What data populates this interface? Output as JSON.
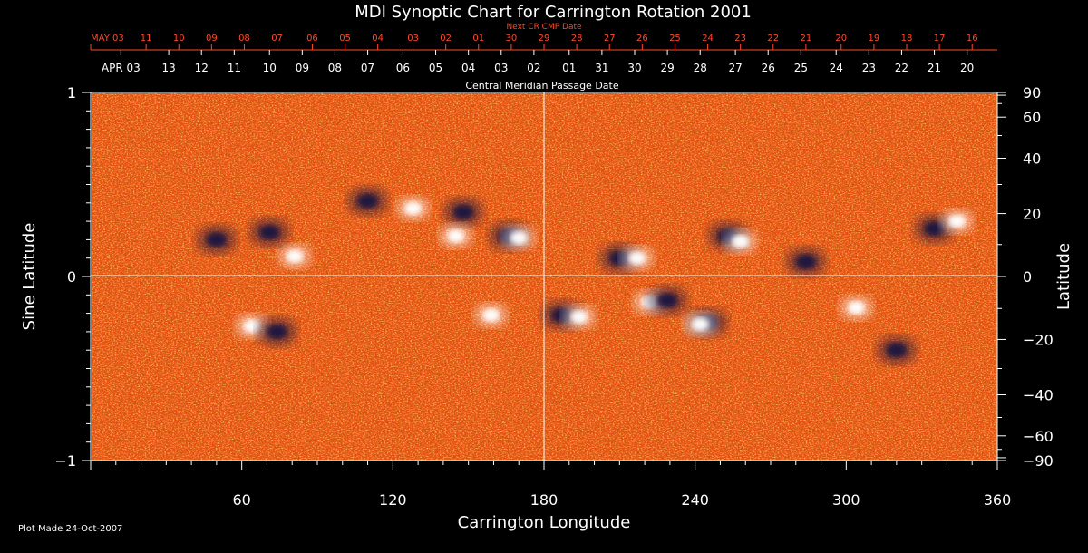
{
  "chart_data": {
    "type": "heatmap",
    "title": "MDI Synoptic Chart for Carrington Rotation 2001",
    "xlabel": "Carrington Longitude",
    "ylabel_left": "Sine Latitude",
    "ylabel_right": "Latitude",
    "top_label_next": "Next CR CMP Date",
    "top_label_cmp": "Central Meridian Passage Date",
    "xlim": [
      0,
      360
    ],
    "ylim": [
      -1,
      1
    ],
    "x_ticks": [
      60,
      120,
      180,
      240,
      300,
      360
    ],
    "y_ticks_left": [
      {
        "value": 1,
        "label": "1"
      },
      {
        "value": 0,
        "label": "0"
      },
      {
        "value": -1,
        "label": "−1"
      }
    ],
    "y_ticks_right": [
      {
        "value": 90,
        "label": "90"
      },
      {
        "value": 60,
        "label": "60"
      },
      {
        "value": 40,
        "label": "40"
      },
      {
        "value": 20,
        "label": "20"
      },
      {
        "value": 0,
        "label": "0"
      },
      {
        "value": -20,
        "label": "−20"
      },
      {
        "value": -40,
        "label": "−40"
      },
      {
        "value": -60,
        "label": "−60"
      },
      {
        "value": -90,
        "label": "−90"
      }
    ],
    "next_cmp_dates": [
      {
        "lon": 0,
        "label": "MAY 03"
      },
      {
        "lon": 22,
        "label": "11"
      },
      {
        "lon": 35,
        "label": "10"
      },
      {
        "lon": 48,
        "label": "09"
      },
      {
        "lon": 61,
        "label": "08"
      },
      {
        "lon": 74,
        "label": "07"
      },
      {
        "lon": 88,
        "label": "06"
      },
      {
        "lon": 101,
        "label": "05"
      },
      {
        "lon": 114,
        "label": "04"
      },
      {
        "lon": 128,
        "label": "03"
      },
      {
        "lon": 141,
        "label": "02"
      },
      {
        "lon": 154,
        "label": "01"
      },
      {
        "lon": 167,
        "label": "30"
      },
      {
        "lon": 180,
        "label": "29"
      },
      {
        "lon": 193,
        "label": "28"
      },
      {
        "lon": 206,
        "label": "27"
      },
      {
        "lon": 219,
        "label": "26"
      },
      {
        "lon": 232,
        "label": "25"
      },
      {
        "lon": 245,
        "label": "24"
      },
      {
        "lon": 258,
        "label": "23"
      },
      {
        "lon": 271,
        "label": "22"
      },
      {
        "lon": 284,
        "label": "21"
      },
      {
        "lon": 298,
        "label": "20"
      },
      {
        "lon": 311,
        "label": "19"
      },
      {
        "lon": 324,
        "label": "18"
      },
      {
        "lon": 337,
        "label": "17"
      },
      {
        "lon": 350,
        "label": "16"
      }
    ],
    "cmp_dates": [
      {
        "lon": 12,
        "label": "APR 03"
      },
      {
        "lon": 31,
        "label": "13"
      },
      {
        "lon": 44,
        "label": "12"
      },
      {
        "lon": 57,
        "label": "11"
      },
      {
        "lon": 71,
        "label": "10"
      },
      {
        "lon": 84,
        "label": "09"
      },
      {
        "lon": 97,
        "label": "08"
      },
      {
        "lon": 110,
        "label": "07"
      },
      {
        "lon": 124,
        "label": "06"
      },
      {
        "lon": 137,
        "label": "05"
      },
      {
        "lon": 150,
        "label": "04"
      },
      {
        "lon": 163,
        "label": "03"
      },
      {
        "lon": 176,
        "label": "02"
      },
      {
        "lon": 190,
        "label": "01"
      },
      {
        "lon": 203,
        "label": "31"
      },
      {
        "lon": 216,
        "label": "30"
      },
      {
        "lon": 229,
        "label": "29"
      },
      {
        "lon": 242,
        "label": "28"
      },
      {
        "lon": 256,
        "label": "27"
      },
      {
        "lon": 269,
        "label": "26"
      },
      {
        "lon": 282,
        "label": "25"
      },
      {
        "lon": 296,
        "label": "24"
      },
      {
        "lon": 309,
        "label": "23"
      },
      {
        "lon": 322,
        "label": "22"
      },
      {
        "lon": 335,
        "label": "21"
      },
      {
        "lon": 348,
        "label": "20"
      }
    ],
    "regions": [
      {
        "lon": 81,
        "sinlat": 0.11,
        "polarity": "positive"
      },
      {
        "lon": 71,
        "sinlat": 0.24,
        "polarity": "negative"
      },
      {
        "lon": 50,
        "sinlat": 0.2,
        "polarity": "negative"
      },
      {
        "lon": 166,
        "sinlat": 0.22,
        "polarity": "negative"
      },
      {
        "lon": 170,
        "sinlat": 0.21,
        "polarity": "positive"
      },
      {
        "lon": 210,
        "sinlat": 0.1,
        "polarity": "negative"
      },
      {
        "lon": 217,
        "sinlat": 0.1,
        "polarity": "positive"
      },
      {
        "lon": 253,
        "sinlat": 0.22,
        "polarity": "negative"
      },
      {
        "lon": 258,
        "sinlat": 0.19,
        "polarity": "positive"
      },
      {
        "lon": 222,
        "sinlat": -0.14,
        "polarity": "positive"
      },
      {
        "lon": 229,
        "sinlat": -0.13,
        "polarity": "negative"
      },
      {
        "lon": 245,
        "sinlat": -0.25,
        "polarity": "negative"
      },
      {
        "lon": 242,
        "sinlat": -0.26,
        "polarity": "positive"
      },
      {
        "lon": 64,
        "sinlat": -0.27,
        "polarity": "positive"
      },
      {
        "lon": 74,
        "sinlat": -0.3,
        "polarity": "negative"
      },
      {
        "lon": 187,
        "sinlat": -0.21,
        "polarity": "negative"
      },
      {
        "lon": 194,
        "sinlat": -0.22,
        "polarity": "positive"
      },
      {
        "lon": 159,
        "sinlat": -0.21,
        "polarity": "positive"
      },
      {
        "lon": 335,
        "sinlat": 0.26,
        "polarity": "negative"
      },
      {
        "lon": 344,
        "sinlat": 0.3,
        "polarity": "positive"
      },
      {
        "lon": 284,
        "sinlat": 0.08,
        "polarity": "negative"
      },
      {
        "lon": 304,
        "sinlat": -0.17,
        "polarity": "positive"
      },
      {
        "lon": 320,
        "sinlat": -0.4,
        "polarity": "negative"
      },
      {
        "lon": 110,
        "sinlat": 0.41,
        "polarity": "negative"
      },
      {
        "lon": 128,
        "sinlat": 0.37,
        "polarity": "positive"
      },
      {
        "lon": 148,
        "sinlat": 0.35,
        "polarity": "negative"
      },
      {
        "lon": 145,
        "sinlat": 0.22,
        "polarity": "positive"
      }
    ],
    "colors": {
      "background": "#000000",
      "map_base": "#e8520f",
      "negative_flux": "#1a1240",
      "positive_flux": "#ffffff",
      "top_axis": "#ff4a2a",
      "foreground": "#ffffff"
    }
  },
  "footer": {
    "plot_made": "Plot Made 24-Oct-2007"
  }
}
